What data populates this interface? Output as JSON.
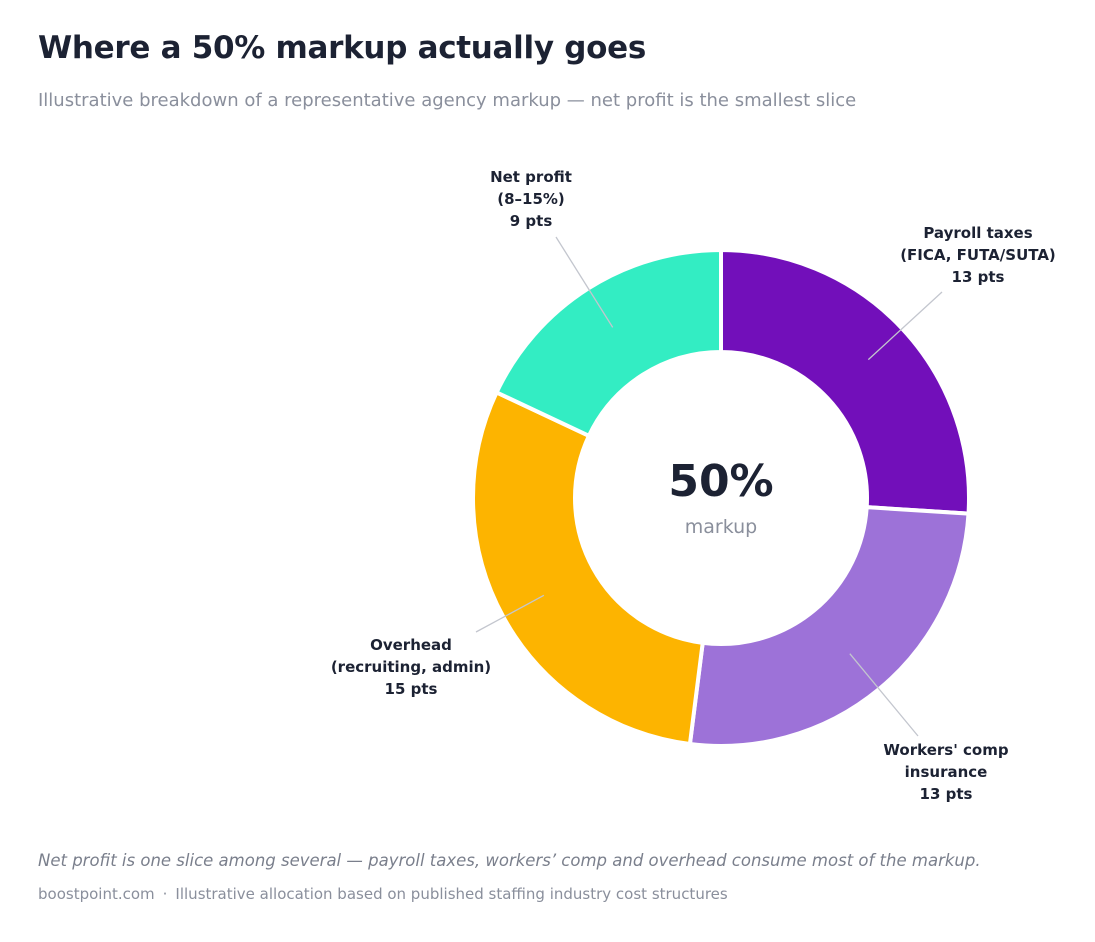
{
  "header": {
    "title": "Where a 50% markup actually goes",
    "subtitle": "Illustrative breakdown of a representative agency markup — net profit is the smallest slice"
  },
  "chart_data": {
    "type": "pie",
    "donut": true,
    "unit": "pts",
    "center": {
      "value": "50%",
      "label": "markup"
    },
    "slices": [
      {
        "name": "Payroll taxes",
        "detail": "(FICA, FUTA/SUTA)",
        "value": 13,
        "value_label": "13 pts",
        "color": "#720fba"
      },
      {
        "name": "Workers' comp",
        "detail": "insurance",
        "value": 13,
        "value_label": "13 pts",
        "color": "#9d72d8"
      },
      {
        "name": "Overhead",
        "detail": "(recruiting, admin)",
        "value": 15,
        "value_label": "15 pts",
        "color": "#fdb400"
      },
      {
        "name": "Net profit",
        "detail": "(8–15%)",
        "value": 9,
        "value_label": "9 pts",
        "color": "#33edc3"
      }
    ]
  },
  "footer": {
    "note": "Net profit is one slice among several — payroll taxes, workers’ comp and overhead consume most of the markup.",
    "source_site": "boostpoint.com",
    "source_separator": "·",
    "source_text": "Illustrative allocation based on published staffing industry cost structures"
  }
}
